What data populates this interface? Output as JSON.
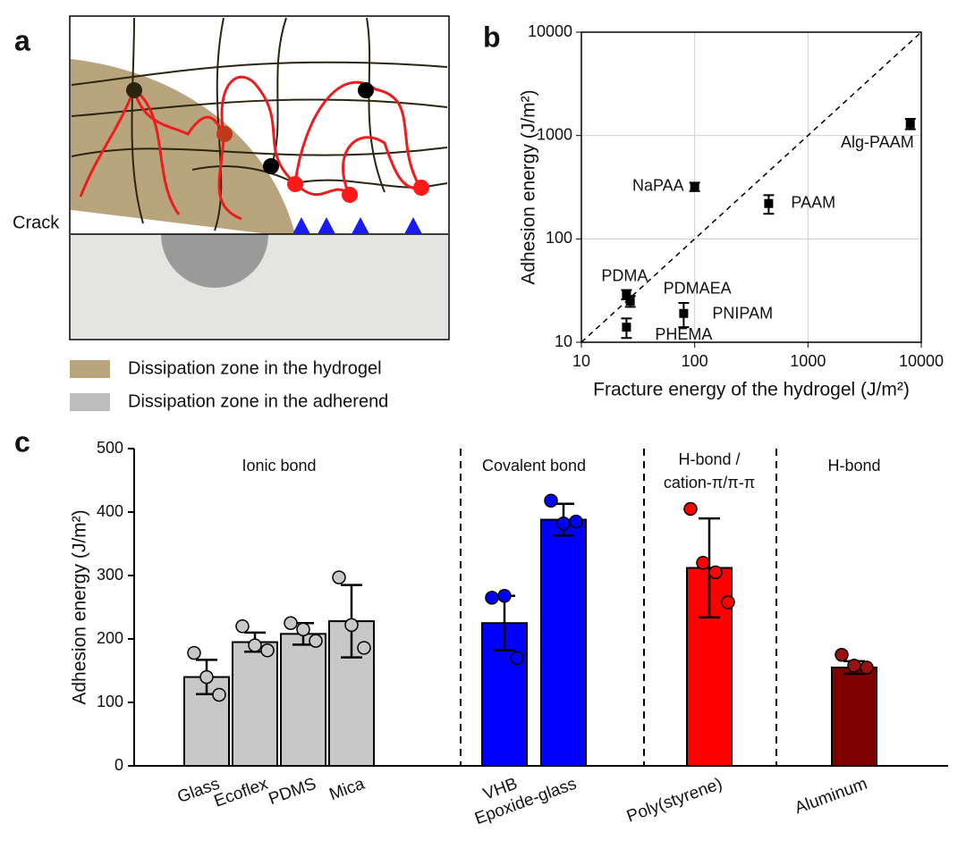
{
  "diagram": {
    "panel": "a",
    "crack": "Crack",
    "legend": [
      {
        "label": "Dissipation zone in the hydrogel",
        "color": "#b9a57d"
      },
      {
        "label": "Dissipation zone in the adherend",
        "color": "#bdbdbd"
      }
    ]
  },
  "chart_data": [
    {
      "type": "scatter",
      "panel": "b",
      "x_label": "Fracture energy of the hydrogel (J/m²)",
      "y_label": "Adhesion energy (J/m²)",
      "xscale": "log",
      "yscale": "log",
      "xlim": [
        10,
        10000
      ],
      "ylim": [
        10,
        10000
      ],
      "xticks": [
        10,
        100,
        1000,
        10000
      ],
      "yticks": [
        10,
        100,
        1000,
        10000
      ],
      "grid": true,
      "color": "#000000",
      "points": [
        {
          "label": "NaPAA",
          "x": 100,
          "y": 320,
          "yerr": 30
        },
        {
          "label": "PAAM",
          "x": 450,
          "y": 220,
          "yerr": 45
        },
        {
          "label": "Alg-PAAM",
          "x": 8000,
          "y": 1300,
          "yerr": 150
        },
        {
          "label": "PDMA",
          "x": 25,
          "y": 29,
          "yerr": 3
        },
        {
          "label": "PDMAEA",
          "x": 27,
          "y": 25,
          "yerr": 3
        },
        {
          "label": "PNIPAM",
          "x": 80,
          "y": 19,
          "yerr": 5
        },
        {
          "label": "PHEMA",
          "x": 25,
          "y": 14,
          "yerr": 3
        }
      ]
    },
    {
      "type": "bar",
      "panel": "c",
      "y_label": "Adhesion energy (J/m²)",
      "ylim": [
        0,
        500
      ],
      "yticks": [
        0,
        100,
        200,
        300,
        400,
        500
      ],
      "groups": [
        {
          "label": [
            "Ionic bond"
          ],
          "color": "#c8c8c8",
          "point_color": "#c8c8c8",
          "categories": [
            "Glass",
            "Ecoflex",
            "PDMS",
            "Mica"
          ],
          "values": [
            140,
            195,
            208,
            228
          ],
          "errors": [
            27,
            15,
            17,
            57
          ],
          "points": [
            [
              178,
              140,
              112
            ],
            [
              220,
              190,
              182
            ],
            [
              225,
              215,
              197
            ],
            [
              297,
              222,
              186
            ]
          ]
        },
        {
          "label": [
            "Covalent bond"
          ],
          "color": "#0000ff",
          "point_color": "#0000ff",
          "categories": [
            "VHB",
            "Epoxide-glass"
          ],
          "values": [
            225,
            388
          ],
          "errors": [
            43,
            25
          ],
          "points": [
            [
              265,
              268,
              170
            ],
            [
              418,
              382,
              385
            ]
          ]
        },
        {
          "label": [
            "H-bond /",
            "cation-π/π-π"
          ],
          "color": "#ff0000",
          "point_color": "#ff0000",
          "categories": [
            "Poly(styrene)"
          ],
          "values": [
            312
          ],
          "errors": [
            78
          ],
          "points": [
            [
              405,
              320,
              305,
              258
            ]
          ]
        },
        {
          "label": [
            "H-bond"
          ],
          "color": "#7f0000",
          "point_color": "#9b1010",
          "categories": [
            "Aluminum"
          ],
          "values": [
            155
          ],
          "errors": [
            10
          ],
          "points": [
            [
              175,
              158,
              155
            ]
          ]
        }
      ]
    }
  ]
}
